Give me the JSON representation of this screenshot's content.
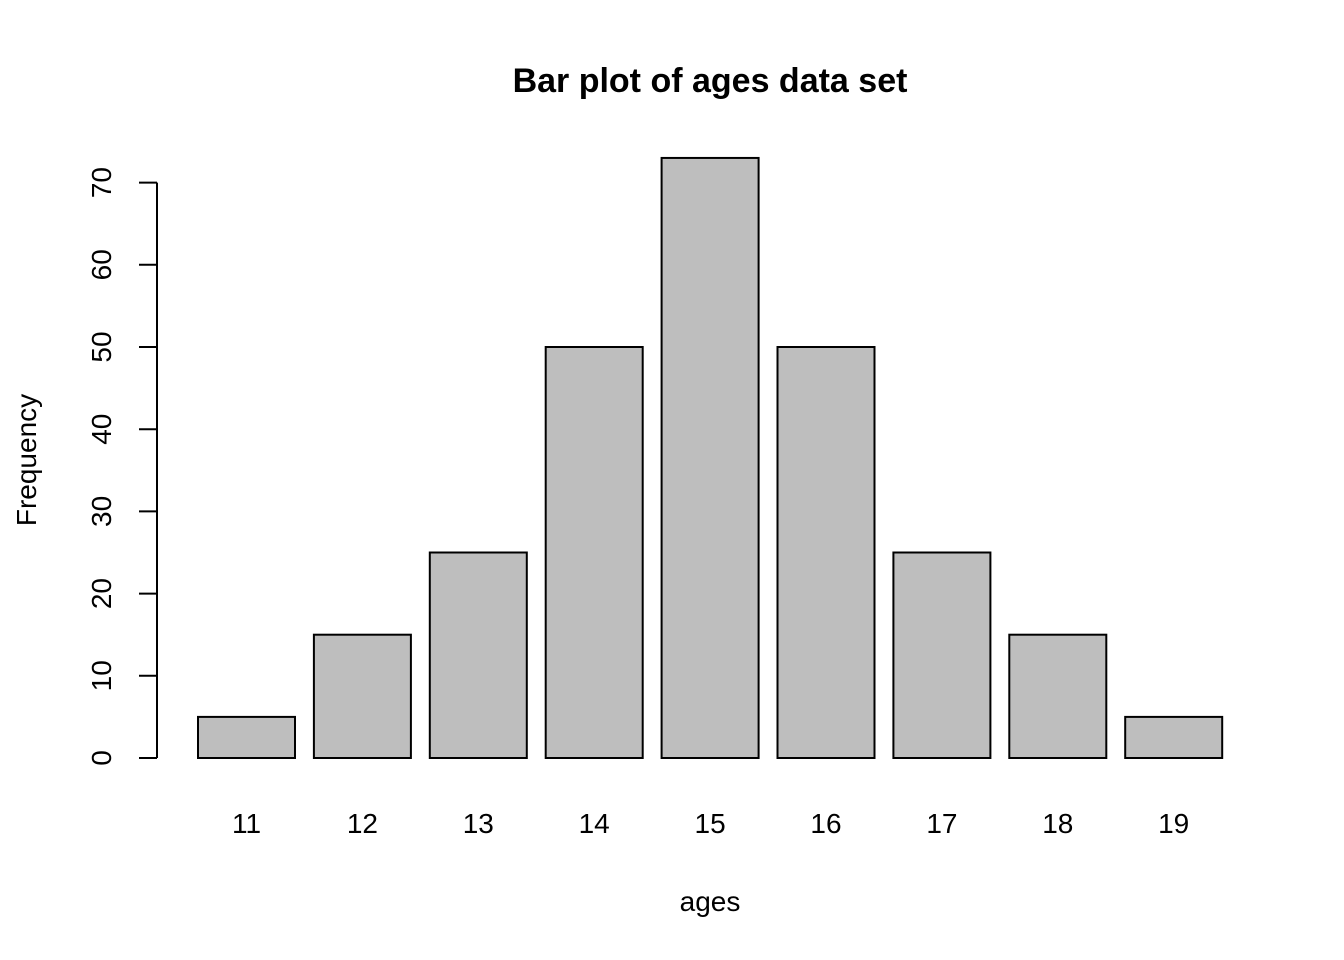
{
  "chart_data": {
    "type": "bar",
    "title": "Bar plot of ages data set",
    "xlabel": "ages",
    "ylabel": "Frequency",
    "categories": [
      "11",
      "12",
      "13",
      "14",
      "15",
      "16",
      "17",
      "18",
      "19"
    ],
    "values": [
      5,
      15,
      25,
      50,
      73,
      50,
      25,
      15,
      5
    ],
    "ylim": [
      0,
      73
    ],
    "yticks": [
      0,
      10,
      20,
      30,
      40,
      50,
      60,
      70
    ],
    "grid": false,
    "legend": "none",
    "bar_color": "#bebebe",
    "border_color": "#000000"
  }
}
